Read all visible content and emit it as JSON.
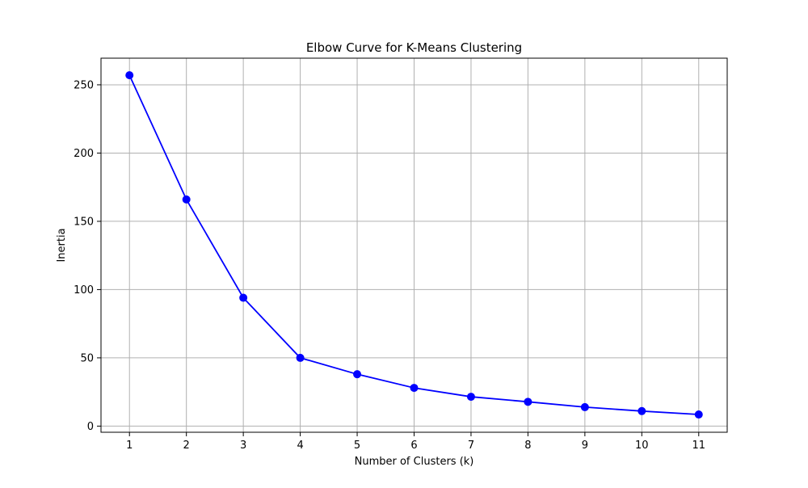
{
  "chart_data": {
    "type": "line",
    "title": "Elbow Curve for K-Means Clustering",
    "xlabel": "Number of Clusters (k)",
    "ylabel": "Inertia",
    "x": [
      1,
      2,
      3,
      4,
      5,
      6,
      7,
      8,
      9,
      10,
      11
    ],
    "series": [
      {
        "values": [
          257,
          166,
          94,
          50,
          38,
          28,
          21.5,
          17.8,
          13.9,
          11.0,
          8.5
        ],
        "color": "#0000ff",
        "marker": "circle"
      }
    ],
    "xlim": [
      0.5,
      11.5
    ],
    "ylim": [
      -4.5,
      269.5
    ],
    "xticks": [
      1,
      2,
      3,
      4,
      5,
      6,
      7,
      8,
      9,
      10,
      11
    ],
    "yticks": [
      0,
      50,
      100,
      150,
      200,
      250
    ],
    "grid": true,
    "legend": "none"
  }
}
